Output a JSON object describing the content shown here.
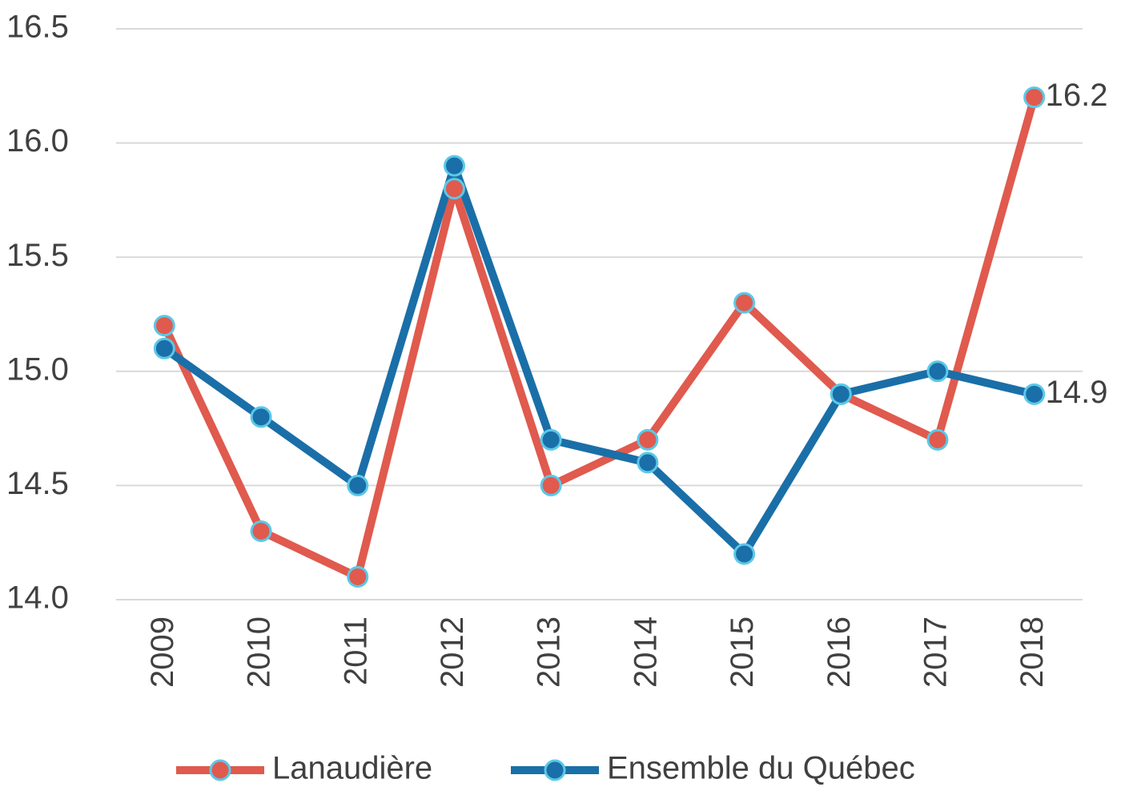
{
  "chart_data": {
    "type": "line",
    "categories": [
      "2009",
      "2010",
      "2011",
      "2012",
      "2013",
      "2014",
      "2015",
      "2016",
      "2017",
      "2018"
    ],
    "series": [
      {
        "name": "Lanaudière",
        "color": "#e05a4e",
        "values": [
          15.2,
          14.3,
          14.1,
          15.8,
          14.5,
          14.7,
          15.3,
          14.9,
          14.7,
          16.2
        ]
      },
      {
        "name": "Ensemble du Québec",
        "color": "#1a6fa8",
        "values": [
          15.1,
          14.8,
          14.5,
          15.9,
          14.7,
          14.6,
          14.2,
          14.9,
          15.0,
          14.9
        ]
      }
    ],
    "ylim": [
      14.0,
      16.5
    ],
    "yticks": [
      {
        "value": 14.0,
        "label": "14.0"
      },
      14.5,
      {
        "value": 15.0,
        "label": "15.0"
      },
      15.5,
      {
        "value": 16.0,
        "label": "16.0"
      },
      16.5
    ],
    "grid": true,
    "legend": "bottom"
  }
}
